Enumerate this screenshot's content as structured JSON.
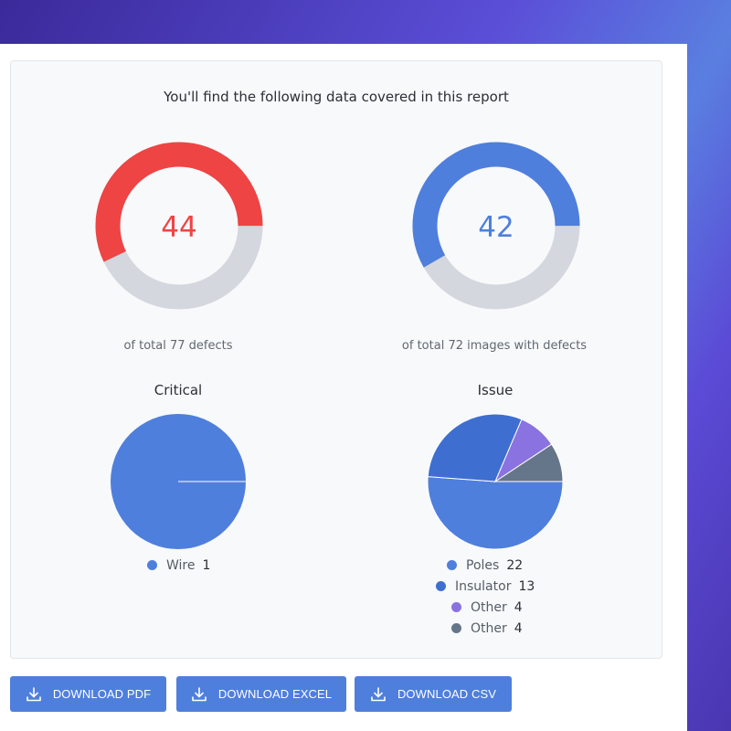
{
  "report": {
    "title": "You'll find the following data covered in this report",
    "donuts": [
      {
        "value": "44",
        "caption": "of total 77 defects",
        "fraction": 0.5714,
        "color": "#ee4444",
        "track": "#d4d7dd"
      },
      {
        "value": "42",
        "caption": "of total 72 images with defects",
        "fraction": 0.5833,
        "color": "#4f7fdc",
        "track": "#d4d7dd"
      }
    ]
  },
  "chart_data": [
    {
      "type": "pie",
      "title": "Critical",
      "categories": [
        "Wire"
      ],
      "values": [
        1
      ],
      "colors": [
        "#4f7fdc"
      ]
    },
    {
      "type": "pie",
      "title": "Issue",
      "categories": [
        "Poles",
        "Insulator",
        "Other",
        "Other"
      ],
      "values": [
        22,
        13,
        4,
        4
      ],
      "colors": [
        "#4f7fdc",
        "#3e6fd0",
        "#8a72e0",
        "#66768a"
      ]
    }
  ],
  "buttons": {
    "pdf": "DOWNLOAD PDF",
    "excel": "DOWNLOAD EXCEL",
    "csv": "DOWNLOAD CSV"
  },
  "icons": {
    "download": "download-icon"
  }
}
